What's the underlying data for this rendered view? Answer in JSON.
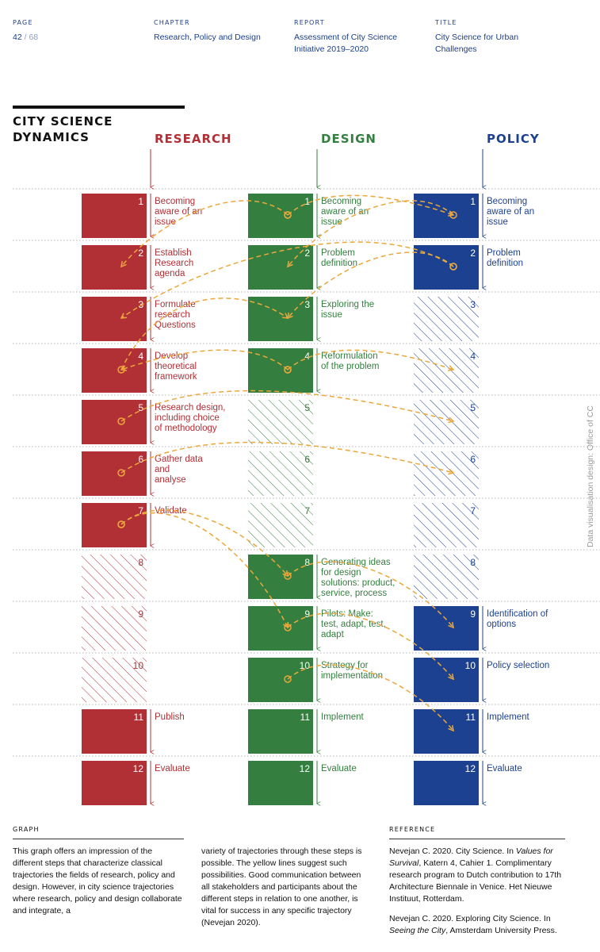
{
  "header": {
    "page_label": "PAGE",
    "page_current": "42",
    "page_sep": "/",
    "page_total": "68",
    "chapter_label": "CHAPTER",
    "chapter_value": "Research, Policy and Design",
    "report_label": "REPORT",
    "report_value_line1": "Assessment of City Science",
    "report_value_line2": "Initiative 2019–2020",
    "title_label": "TITLE",
    "title_value_line1": "City Science for Urban",
    "title_value_line2": "Challenges"
  },
  "diagram": {
    "title_line1": "CITY SCIENCE",
    "title_line2": "DYNAMICS",
    "credit": "Data visualisation design: Office of CC",
    "colors": {
      "research": "#b03036",
      "design": "#347f3f",
      "policy": "#1c4191",
      "trajectory": "#eba73a"
    },
    "columns": [
      {
        "key": "research",
        "name": "RESEARCH",
        "steps": [
          {
            "n": "1",
            "active": true,
            "lines": [
              "Becoming",
              "aware of an",
              "issue"
            ]
          },
          {
            "n": "2",
            "active": true,
            "lines": [
              "Establish",
              "Research",
              "agenda"
            ]
          },
          {
            "n": "3",
            "active": true,
            "lines": [
              "Formulate",
              "research",
              "Questions"
            ]
          },
          {
            "n": "4",
            "active": true,
            "lines": [
              "Develop",
              "theoretical",
              "framework"
            ]
          },
          {
            "n": "5",
            "active": true,
            "lines": [
              "Research design,",
              "including choice",
              "of methodology"
            ]
          },
          {
            "n": "6",
            "active": true,
            "lines": [
              "Gather data",
              "and",
              "analyse"
            ]
          },
          {
            "n": "7",
            "active": true,
            "lines": [
              "Validate"
            ]
          },
          {
            "n": "8",
            "active": false,
            "lines": []
          },
          {
            "n": "9",
            "active": false,
            "lines": []
          },
          {
            "n": "10",
            "active": false,
            "lines": []
          },
          {
            "n": "11",
            "active": true,
            "lines": [
              "Publish"
            ]
          },
          {
            "n": "12",
            "active": true,
            "lines": [
              "Evaluate"
            ]
          }
        ]
      },
      {
        "key": "design",
        "name": "DESIGN",
        "steps": [
          {
            "n": "1",
            "active": true,
            "lines": [
              "Becoming",
              "aware of an",
              "issue"
            ]
          },
          {
            "n": "2",
            "active": true,
            "lines": [
              "Problem",
              "definition"
            ]
          },
          {
            "n": "3",
            "active": true,
            "lines": [
              "Exploring the",
              "issue"
            ]
          },
          {
            "n": "4",
            "active": true,
            "lines": [
              "Reformulation",
              "of the problem"
            ]
          },
          {
            "n": "5",
            "active": false,
            "lines": []
          },
          {
            "n": "6",
            "active": false,
            "lines": []
          },
          {
            "n": "7",
            "active": false,
            "lines": []
          },
          {
            "n": "8",
            "active": true,
            "lines": [
              "Generating ideas",
              "for design",
              "solutions: product,",
              "service, process"
            ]
          },
          {
            "n": "9",
            "active": true,
            "lines": [
              "Pilots: Make:",
              "test, adapt, test,",
              "adapt"
            ]
          },
          {
            "n": "10",
            "active": true,
            "lines": [
              "Strategy for",
              "implementation"
            ]
          },
          {
            "n": "11",
            "active": true,
            "lines": [
              "Implement"
            ]
          },
          {
            "n": "12",
            "active": true,
            "lines": [
              "Evaluate"
            ]
          }
        ]
      },
      {
        "key": "policy",
        "name": "POLICY",
        "steps": [
          {
            "n": "1",
            "active": true,
            "lines": [
              "Becoming",
              "aware of an",
              "issue"
            ]
          },
          {
            "n": "2",
            "active": true,
            "lines": [
              "Problem",
              "definition"
            ]
          },
          {
            "n": "3",
            "active": false,
            "lines": []
          },
          {
            "n": "4",
            "active": false,
            "lines": []
          },
          {
            "n": "5",
            "active": false,
            "lines": []
          },
          {
            "n": "6",
            "active": false,
            "lines": []
          },
          {
            "n": "7",
            "active": false,
            "lines": []
          },
          {
            "n": "8",
            "active": false,
            "lines": []
          },
          {
            "n": "9",
            "active": true,
            "lines": [
              "Identification of",
              "options"
            ]
          },
          {
            "n": "10",
            "active": true,
            "lines": [
              "Policy selection"
            ]
          },
          {
            "n": "11",
            "active": true,
            "lines": [
              "Implement"
            ]
          },
          {
            "n": "12",
            "active": true,
            "lines": [
              "Evaluate"
            ]
          }
        ]
      }
    ],
    "trajectories": [
      {
        "from": [
          "design",
          1
        ],
        "to": [
          "research",
          2
        ]
      },
      {
        "from": [
          "design",
          1
        ],
        "to": [
          "policy",
          1
        ]
      },
      {
        "from": [
          "policy",
          1
        ],
        "to": [
          "design",
          2
        ]
      },
      {
        "from": [
          "policy",
          2
        ],
        "to": [
          "research",
          3
        ]
      },
      {
        "from": [
          "design",
          4
        ],
        "to": [
          "research",
          4
        ]
      },
      {
        "from": [
          "research",
          4
        ],
        "to": [
          "design",
          3
        ]
      },
      {
        "from": [
          "policy",
          2
        ],
        "to": [
          "design",
          3
        ]
      },
      {
        "from": [
          "design",
          4
        ],
        "to": [
          "policy",
          4
        ]
      },
      {
        "from": [
          "research",
          5
        ],
        "to": [
          "policy",
          5
        ]
      },
      {
        "from": [
          "research",
          6
        ],
        "to": [
          "policy",
          6
        ]
      },
      {
        "from": [
          "research",
          7
        ],
        "to": [
          "design",
          8
        ]
      },
      {
        "from": [
          "research",
          7
        ],
        "to": [
          "design",
          9
        ]
      },
      {
        "from": [
          "design",
          8
        ],
        "to": [
          "policy",
          9
        ]
      },
      {
        "from": [
          "design",
          9
        ],
        "to": [
          "policy",
          10
        ]
      },
      {
        "from": [
          "design",
          10
        ],
        "to": [
          "policy",
          11
        ]
      }
    ]
  },
  "footer": {
    "graph_label": "GRAPH",
    "graph_text_1": "This graph offers an impression of the different steps that characterize classical trajectories the fields of research, policy and design. However, in city science trajectories where research, policy and design collaborate and integrate, a",
    "graph_text_2": "variety of trajectories through these steps is possible. The yellow lines suggest such possibilities. Good communication between all stakeholders and participants about the different steps in relation to one another, is vital for success in any specific trajectory (Nevejan 2020).",
    "reference_label": "REFERENCE",
    "ref1_a": "Nevejan C. 2020. City Science. In ",
    "ref1_italic": "Values for Survival",
    "ref1_b": ", Katern 4, Cahier 1. Complimentary research program to Dutch contribution to 17th Architecture Biennale in Venice. Het Nieuwe Instituut, Rotterdam.",
    "ref2_a": "Nevejan C. 2020. Exploring City Science. In ",
    "ref2_italic": "Seeing the City",
    "ref2_b": ", Amsterdam University Press."
  }
}
